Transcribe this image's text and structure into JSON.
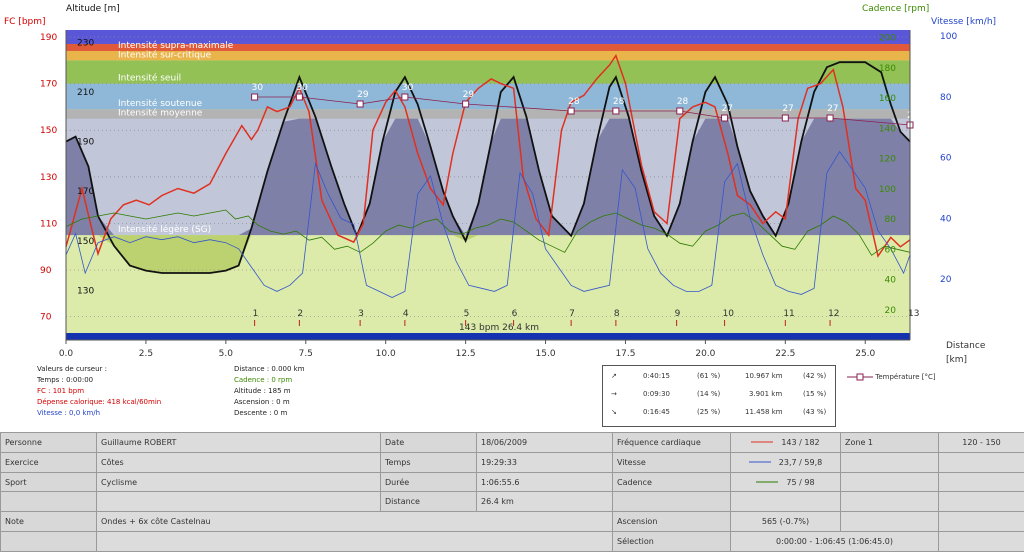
{
  "chart_data": {
    "type": "line",
    "axes": {
      "left_title": "FC [bpm]",
      "left_color": "#d40000",
      "left_ticks": [
        70,
        90,
        110,
        130,
        150,
        170,
        190
      ],
      "left_ylim": [
        60,
        193
      ],
      "alt_title": "Altitude  [m]",
      "alt_ticks": [
        130,
        150,
        170,
        190,
        210,
        230
      ],
      "alt_ylim": [
        110,
        235
      ],
      "right1_title": "Cadence [rpm]",
      "right1_color": "#3a8a00",
      "right1_ticks": [
        20,
        40,
        60,
        80,
        100,
        120,
        140,
        160,
        180,
        200
      ],
      "right1_ylim": [
        0,
        205
      ],
      "right2_title": "Vitesse [km/h]",
      "right2_color": "#2244cc",
      "right2_ticks": [
        20,
        40,
        60,
        80,
        100
      ],
      "right2_ylim": [
        0,
        102
      ],
      "x_title": "Distance",
      "x_unit": "[km]",
      "x_ticks": [
        "0.0",
        "2.5",
        "5.0",
        "7.5",
        "10.0",
        "12.5",
        "15.0",
        "17.5",
        "20.0",
        "22.5",
        "25.0"
      ],
      "xlim": [
        0,
        26.4
      ]
    },
    "zones": [
      {
        "name": "Intensité légère (SG)",
        "lo": 105,
        "hi": 155,
        "color": "#7f80a8"
      },
      {
        "name": "Intensité moyenne",
        "lo": 155,
        "hi": 159,
        "color": "#b3b3b3"
      },
      {
        "name": "Intensité soutenue",
        "lo": 159,
        "hi": 170,
        "color": "#8fb8d8"
      },
      {
        "name": "Intensité seuil",
        "lo": 170,
        "hi": 180,
        "color": "#94c155"
      },
      {
        "name": "Intensité sur-critique",
        "lo": 180,
        "hi": 184,
        "color": "#e9b44a"
      },
      {
        "name": "Intensité supra-maximale",
        "lo": 184,
        "hi": 187,
        "color": "#e05a3a"
      },
      {
        "name": "",
        "lo": 187,
        "hi": 193,
        "color": "#5a56d8"
      }
    ],
    "series": [
      {
        "name": "Altitude",
        "axis": "alt",
        "color": "#111111",
        "x": [
          0,
          0.3,
          0.7,
          1.0,
          1.5,
          2.0,
          2.5,
          3.0,
          3.5,
          4.0,
          4.5,
          5.0,
          5.4,
          5.8,
          6.3,
          6.8,
          7.3,
          7.8,
          8.3,
          8.7,
          9.1,
          9.5,
          9.9,
          10.3,
          10.6,
          11.0,
          11.4,
          11.8,
          12.1,
          12.5,
          12.9,
          13.3,
          13.6,
          14.0,
          14.4,
          14.8,
          15.2,
          15.8,
          16.2,
          16.6,
          17.0,
          17.2,
          17.6,
          18.0,
          18.4,
          18.8,
          19.2,
          19.6,
          20.0,
          20.3,
          20.7,
          21.0,
          21.4,
          21.8,
          22.2,
          22.6,
          23.0,
          23.4,
          23.8,
          24.2,
          24.5,
          25.0,
          25.5,
          25.8,
          26.1,
          26.4
        ],
        "y": [
          190,
          192,
          180,
          160,
          148,
          140,
          138,
          137,
          137,
          137,
          137,
          138,
          140,
          155,
          178,
          198,
          216,
          200,
          180,
          165,
          152,
          165,
          190,
          210,
          216,
          205,
          188,
          170,
          160,
          150,
          165,
          190,
          210,
          216,
          200,
          178,
          160,
          152,
          165,
          190,
          212,
          216,
          200,
          178,
          160,
          152,
          165,
          190,
          210,
          216,
          205,
          188,
          170,
          160,
          152,
          165,
          190,
          210,
          220,
          222,
          222,
          222,
          218,
          205,
          194,
          190
        ]
      },
      {
        "name": "FC",
        "axis": "left",
        "color": "#e03020",
        "x": [
          0,
          0.2,
          0.5,
          0.8,
          1.0,
          1.4,
          1.8,
          2.2,
          2.6,
          3.0,
          3.5,
          4.0,
          4.5,
          5.0,
          5.5,
          5.8,
          6.0,
          6.3,
          6.6,
          7.0,
          7.3,
          7.6,
          8.0,
          8.5,
          9.0,
          9.3,
          9.6,
          10.0,
          10.3,
          10.6,
          11.0,
          11.4,
          11.8,
          12.1,
          12.5,
          12.9,
          13.3,
          13.6,
          14.0,
          14.3,
          14.7,
          15.1,
          15.5,
          15.8,
          16.2,
          16.6,
          17.0,
          17.2,
          17.5,
          18.0,
          18.4,
          18.8,
          19.2,
          19.6,
          20.0,
          20.3,
          20.7,
          21.0,
          21.4,
          21.8,
          22.2,
          22.5,
          22.9,
          23.2,
          23.6,
          24.0,
          24.3,
          24.7,
          25.0,
          25.4,
          25.8,
          26.1,
          26.4
        ],
        "y": [
          100,
          110,
          125,
          108,
          97,
          112,
          118,
          120,
          118,
          122,
          125,
          123,
          127,
          140,
          152,
          146,
          150,
          160,
          158,
          160,
          168,
          158,
          120,
          105,
          102,
          110,
          150,
          162,
          167,
          160,
          140,
          125,
          118,
          140,
          162,
          168,
          172,
          170,
          168,
          130,
          112,
          105,
          150,
          162,
          165,
          172,
          178,
          182,
          170,
          135,
          115,
          110,
          155,
          160,
          162,
          160,
          140,
          122,
          118,
          110,
          115,
          112,
          155,
          168,
          170,
          176,
          160,
          125,
          120,
          96,
          104,
          100,
          103
        ]
      },
      {
        "name": "Cadence",
        "axis": "right1",
        "color": "#2d7a00",
        "x": [
          0,
          0.5,
          1.0,
          1.5,
          2.0,
          2.5,
          3.0,
          3.5,
          4.0,
          4.5,
          5.0,
          5.3,
          5.7,
          6.0,
          6.4,
          6.8,
          7.2,
          7.6,
          8.0,
          8.4,
          8.8,
          9.2,
          9.6,
          10.0,
          10.4,
          10.8,
          11.2,
          11.6,
          12.0,
          12.4,
          12.8,
          13.2,
          13.6,
          14.0,
          14.4,
          14.8,
          15.2,
          15.6,
          16.0,
          16.4,
          16.8,
          17.2,
          17.6,
          18.0,
          18.4,
          18.8,
          19.2,
          19.6,
          20.0,
          20.4,
          20.8,
          21.2,
          21.6,
          22.0,
          22.4,
          22.8,
          23.2,
          23.6,
          24.0,
          24.4,
          24.8,
          25.2,
          25.6,
          26.0,
          26.4
        ],
        "y": [
          75,
          80,
          82,
          84,
          82,
          80,
          82,
          84,
          82,
          84,
          86,
          80,
          82,
          76,
          72,
          70,
          72,
          66,
          68,
          60,
          62,
          58,
          64,
          72,
          76,
          74,
          78,
          80,
          72,
          70,
          74,
          76,
          80,
          78,
          72,
          66,
          62,
          58,
          72,
          78,
          82,
          84,
          80,
          76,
          74,
          70,
          64,
          62,
          72,
          76,
          82,
          84,
          78,
          70,
          62,
          60,
          72,
          76,
          82,
          78,
          70,
          56,
          62,
          60,
          58
        ]
      },
      {
        "name": "Vitesse",
        "axis": "right2",
        "color": "#3355cc",
        "x": [
          0,
          0.3,
          0.6,
          1.0,
          1.5,
          2.0,
          2.5,
          3.0,
          3.5,
          4.0,
          4.5,
          5.0,
          5.4,
          5.8,
          6.2,
          6.6,
          7.0,
          7.4,
          7.8,
          8.2,
          8.6,
          9.0,
          9.4,
          9.8,
          10.2,
          10.6,
          11.0,
          11.4,
          11.8,
          12.2,
          12.6,
          13.0,
          13.4,
          13.8,
          14.2,
          14.6,
          15.0,
          15.4,
          15.8,
          16.2,
          16.6,
          17.0,
          17.4,
          17.8,
          18.2,
          18.6,
          19.0,
          19.4,
          19.8,
          20.2,
          20.6,
          21.0,
          21.4,
          21.8,
          22.2,
          22.6,
          23.0,
          23.4,
          23.8,
          24.2,
          24.6,
          25.0,
          25.4,
          25.8,
          26.2,
          26.4
        ],
        "y": [
          28,
          35,
          22,
          32,
          34,
          32,
          34,
          33,
          34,
          32,
          33,
          32,
          30,
          24,
          18,
          16,
          18,
          22,
          58,
          48,
          40,
          38,
          18,
          16,
          14,
          16,
          48,
          54,
          38,
          26,
          18,
          17,
          16,
          18,
          55,
          48,
          30,
          24,
          18,
          16,
          17,
          18,
          56,
          50,
          30,
          22,
          18,
          16,
          16,
          18,
          52,
          58,
          40,
          28,
          18,
          16,
          15,
          17,
          55,
          62,
          56,
          50,
          36,
          30,
          22,
          28
        ]
      },
      {
        "name": "Température [°C]",
        "axis": "temp",
        "color": "#8a2050",
        "x": [
          5.9,
          7.3,
          9.2,
          10.6,
          12.5,
          15.8,
          17.2,
          19.2,
          20.6,
          22.5,
          23.9,
          26.4
        ],
        "y": [
          30,
          30,
          29,
          30,
          29,
          28,
          28,
          28,
          27,
          27,
          27,
          26
        ],
        "labels": [
          "30",
          "30",
          "29",
          "30",
          "29",
          "28",
          "28",
          "28",
          "27",
          "27",
          "27",
          "26"
        ]
      }
    ],
    "markers": {
      "x": [
        5.9,
        7.3,
        9.2,
        10.6,
        12.5,
        14.0,
        15.8,
        17.2,
        19.1,
        20.6,
        22.5,
        23.9,
        26.4
      ],
      "labels": [
        "1",
        "2",
        "3",
        "4",
        "5",
        "6",
        "7",
        "8",
        "9",
        "10",
        "11",
        "12",
        "13"
      ]
    },
    "annotation": "143 bpm 26.4 km",
    "legend": {
      "label": "Température [°C]"
    }
  },
  "cursor": {
    "col1": [
      "Valeurs de curseur :",
      "Temps : 0:00:00",
      "FC : 101 bpm",
      "Dépense calorique: 418 kcal/60min",
      "Vitesse : 0,0 km/h"
    ],
    "col2": [
      "Distance : 0.000 km",
      "Cadence : 0 rpm",
      "Altitude : 185 m",
      "Ascension : 0 m",
      "Descente : 0 m"
    ]
  },
  "summary": [
    {
      "icon": "↗",
      "time": "0:40:15",
      "pct": "(61 %)",
      "dist": "10.967 km",
      "pct2": "(42 %)"
    },
    {
      "icon": "→",
      "time": "0:09:30",
      "pct": "(14 %)",
      "dist": "3.901 km",
      "pct2": "(15 %)"
    },
    {
      "icon": "↘",
      "time": "0:16:45",
      "pct": "(25 %)",
      "dist": "11.458 km",
      "pct2": "(43 %)"
    }
  ],
  "table": {
    "personne_label": "Personne",
    "personne": "Guillaume ROBERT",
    "date_label": "Date",
    "date": "18/06/2009",
    "fc_label": "Fréquence cardiaque",
    "fc": "143 / 182",
    "zone_label": "Zone 1",
    "zone_range": "120 - 150",
    "exercice_label": "Exercice",
    "exercice": "Côtes",
    "temps_label": "Temps",
    "temps": "19:29:33",
    "vitesse_label": "Vitesse",
    "vitesse": "23,7 / 59,8",
    "sport_label": "Sport",
    "sport": "Cyclisme",
    "duree_label": "Durée",
    "duree": "1:06:55.6",
    "cadence_label": "Cadence",
    "cadence": "75 / 98",
    "distance_label": "Distance",
    "distance": "26.4 km",
    "note_label": "Note",
    "note": "Ondes + 6x côte Castelnau",
    "ascension_label": "Ascension",
    "ascension": "565 (-0.7%)",
    "selection_label": "Sélection",
    "selection": "0:00:00 - 1:06:45 (1:06:45.0)"
  }
}
